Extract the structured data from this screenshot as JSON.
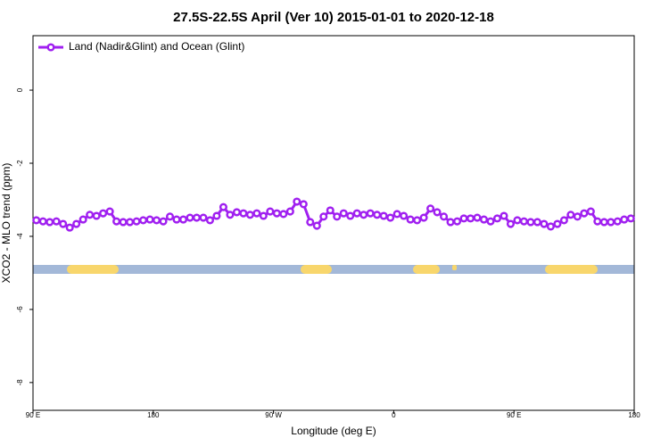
{
  "chart_data": {
    "type": "line",
    "title": "27.5S-22.5S April (Ver 10)   2015-01-01 to 2020-12-18",
    "x_label": "Longitude (deg E)",
    "y_label": "XCO2 - MLO trend (ppm)",
    "x": [
      92.5,
      97.5,
      102.5,
      107.5,
      112.5,
      117.5,
      122.5,
      127.5,
      132.5,
      137.5,
      142.5,
      147.5,
      152.5,
      157.5,
      162.5,
      167.5,
      172.5,
      177.5,
      182.5,
      187.5,
      192.5,
      197.5,
      202.5,
      207.5,
      212.5,
      217.5,
      222.5,
      227.5,
      232.5,
      237.5,
      242.5,
      247.5,
      252.5,
      257.5,
      262.5,
      267.5,
      272.5,
      277.5,
      282.5,
      287.5,
      292.5,
      297.5,
      302.5,
      307.5,
      312.5,
      317.5,
      322.5,
      327.5,
      332.5,
      337.5,
      342.5,
      347.5,
      352.5,
      357.5,
      362.5,
      367.5,
      372.5,
      377.5,
      382.5,
      387.5,
      392.5,
      397.5,
      402.5,
      407.5,
      412.5,
      417.5,
      422.5,
      427.5,
      432.5,
      437.5,
      442.5,
      447.5,
      452.5,
      457.5,
      462.5,
      467.5,
      472.5,
      477.5,
      482.5,
      487.5,
      492.5,
      497.5,
      502.5,
      507.5,
      512.5,
      517.5,
      522.5,
      527.5,
      532.5,
      537.5
    ],
    "series": [
      {
        "name": "Land (Nadir&Glint) and Ocean (Glint)",
        "color": "#a020f0",
        "values": [
          -3.56,
          -3.59,
          -3.61,
          -3.59,
          -3.66,
          -3.76,
          -3.66,
          -3.54,
          -3.41,
          -3.44,
          -3.37,
          -3.32,
          -3.59,
          -3.61,
          -3.61,
          -3.59,
          -3.56,
          -3.54,
          -3.56,
          -3.59,
          -3.46,
          -3.54,
          -3.54,
          -3.49,
          -3.49,
          -3.49,
          -3.56,
          -3.44,
          -3.2,
          -3.41,
          -3.34,
          -3.37,
          -3.41,
          -3.37,
          -3.44,
          -3.32,
          -3.37,
          -3.39,
          -3.32,
          -3.05,
          -3.12,
          -3.61,
          -3.71,
          -3.46,
          -3.29,
          -3.46,
          -3.37,
          -3.44,
          -3.37,
          -3.41,
          -3.37,
          -3.41,
          -3.44,
          -3.49,
          -3.39,
          -3.44,
          -3.54,
          -3.56,
          -3.49,
          -3.24,
          -3.34,
          -3.46,
          -3.61,
          -3.59,
          -3.51,
          -3.51,
          -3.49,
          -3.54,
          -3.59,
          -3.51,
          -3.44,
          -3.66,
          -3.56,
          -3.59,
          -3.61,
          -3.61,
          -3.66,
          -3.73,
          -3.66,
          -3.56,
          -3.41,
          -3.46,
          -3.37,
          -3.32,
          -3.59,
          -3.61,
          -3.61,
          -3.59,
          -3.54,
          -3.51
        ]
      }
    ],
    "xlim": [
      90,
      540
    ],
    "xticks": [
      {
        "value": 90,
        "label": "90 E"
      },
      180,
      {
        "value": 270,
        "label": "90 W"
      },
      {
        "value": 360,
        "label": "0"
      },
      {
        "value": 450,
        "label": "90 E"
      },
      {
        "value": 540,
        "label": "180"
      }
    ],
    "ylim": [
      -8.76,
      1.49
    ],
    "yticks": [
      0,
      -2,
      -4,
      -6,
      -8
    ],
    "legend": "top-left"
  }
}
